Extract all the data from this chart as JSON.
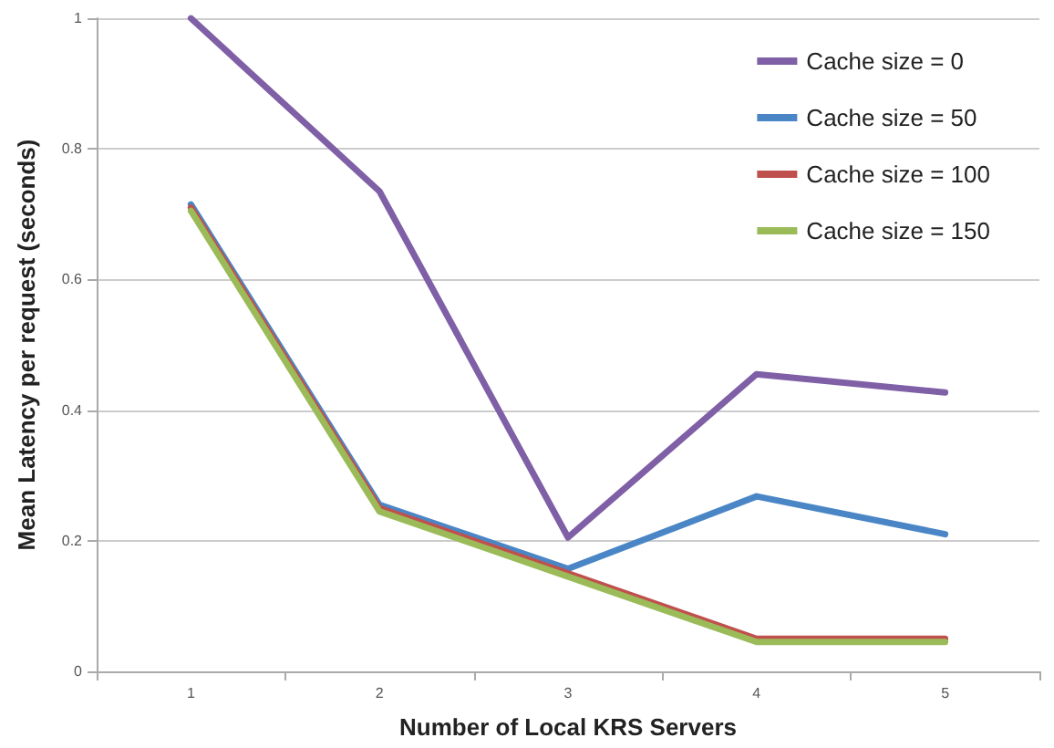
{
  "chart_data": {
    "type": "line",
    "xlabel": "Number of Local KRS Servers",
    "ylabel": "Mean Latency per request (seconds)",
    "categories": [
      "1",
      "2",
      "3",
      "4",
      "5"
    ],
    "series": [
      {
        "name": "Cache size = 0",
        "color": "#7f5fa6",
        "values": [
          1,
          0.735,
          0.205,
          0.455,
          0.427
        ]
      },
      {
        "name": "Cache size = 50",
        "color": "#4a86c6",
        "values": [
          0.715,
          0.255,
          0.157,
          0.268,
          0.21
        ]
      },
      {
        "name": "Cache size = 100",
        "color": "#c0504d",
        "values": [
          0.71,
          0.25,
          0.15,
          0.05,
          0.05
        ]
      },
      {
        "name": "Cache size = 150",
        "color": "#9bbb59",
        "values": [
          0.705,
          0.245,
          0.145,
          0.045,
          0.045
        ]
      }
    ],
    "ylim": [
      0,
      1
    ],
    "yticks": [
      0,
      0.2,
      0.4,
      0.6,
      0.8,
      1
    ],
    "grid": "y",
    "legend": "top right",
    "marker": "none",
    "line_style": "solid"
  }
}
